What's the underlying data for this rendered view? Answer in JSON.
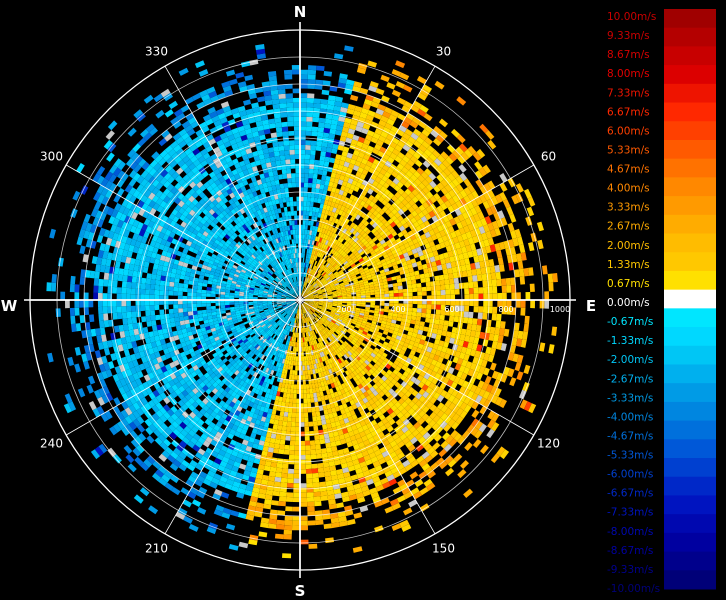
{
  "compass": {
    "n": "N",
    "e": "E",
    "s": "S",
    "w": "W"
  },
  "degree_labels": [
    {
      "deg": 30,
      "text": "30"
    },
    {
      "deg": 60,
      "text": "60"
    },
    {
      "deg": 120,
      "text": "120"
    },
    {
      "deg": 150,
      "text": "150"
    },
    {
      "deg": 210,
      "text": "210"
    },
    {
      "deg": 240,
      "text": "240"
    },
    {
      "deg": 300,
      "text": "300"
    },
    {
      "deg": 330,
      "text": "330"
    }
  ],
  "range_labels": [
    {
      "value": 200,
      "text": "200"
    },
    {
      "value": 400,
      "text": "400"
    },
    {
      "value": 600,
      "text": "600"
    },
    {
      "value": 800,
      "text": "800"
    },
    {
      "value": 1000,
      "text": "1000"
    }
  ],
  "colors": {
    "background": "#000000",
    "grid": "#ffffff",
    "positive_scale": [
      "#fffafa",
      "#ffe000",
      "#ffd400",
      "#ffc800",
      "#ffbc00",
      "#ffac00",
      "#ff9a00",
      "#ff8800",
      "#ff7200",
      "#ff5a00",
      "#ff4000",
      "#ff2800",
      "#ee1400",
      "#dc0000",
      "#c80000",
      "#b00000"
    ],
    "negative_scale": [
      "#00e6ff",
      "#00d8ff",
      "#00c6f5",
      "#00b0ee",
      "#009be6",
      "#0086e0",
      "#0070dc",
      "#0058d8",
      "#0040d0",
      "#0028c8",
      "#0014c0",
      "#0008b0",
      "#0000a0",
      "#00008c",
      "#000078",
      "#000064"
    ]
  },
  "legend": {
    "labels": [
      {
        "text": "10.00m/s",
        "color": "#c80000"
      },
      {
        "text": "9.33m/s",
        "color": "#c80000"
      },
      {
        "text": "8.67m/s",
        "color": "#d60000"
      },
      {
        "text": "8.00m/s",
        "color": "#e20000"
      },
      {
        "text": "7.33m/s",
        "color": "#ee1400"
      },
      {
        "text": "6.67m/s",
        "color": "#ff2800"
      },
      {
        "text": "6.00m/s",
        "color": "#ff4000"
      },
      {
        "text": "5.33m/s",
        "color": "#ff5a00"
      },
      {
        "text": "4.67m/s",
        "color": "#ff7200"
      },
      {
        "text": "4.00m/s",
        "color": "#ff8800"
      },
      {
        "text": "3.33m/s",
        "color": "#ff9a00"
      },
      {
        "text": "2.67m/s",
        "color": "#ffac00"
      },
      {
        "text": "2.00m/s",
        "color": "#ffbc00"
      },
      {
        "text": "1.33m/s",
        "color": "#ffc800"
      },
      {
        "text": "0.67m/s",
        "color": "#ffe000"
      },
      {
        "text": "0.00m/s",
        "color": "#ffffff"
      },
      {
        "text": "-0.67m/s",
        "color": "#00e6ff"
      },
      {
        "text": "-1.33m/s",
        "color": "#00d8ff"
      },
      {
        "text": "-2.00m/s",
        "color": "#00c6f5"
      },
      {
        "text": "-2.67m/s",
        "color": "#00b0ee"
      },
      {
        "text": "-3.33m/s",
        "color": "#009be6"
      },
      {
        "text": "-4.00m/s",
        "color": "#0086e0"
      },
      {
        "text": "-4.67m/s",
        "color": "#0070dc"
      },
      {
        "text": "-5.33m/s",
        "color": "#0058d8"
      },
      {
        "text": "-6.00m/s",
        "color": "#0040d0"
      },
      {
        "text": "-6.67m/s",
        "color": "#0028c8"
      },
      {
        "text": "-7.33m/s",
        "color": "#0014c0"
      },
      {
        "text": "-8.00m/s",
        "color": "#0008b0"
      },
      {
        "text": "-8.67m/s",
        "color": "#0000a0"
      },
      {
        "text": "-9.33m/s",
        "color": "#00008c"
      },
      {
        "text": "-10.00m/s",
        "color": "#000078"
      }
    ],
    "bar_colors": [
      "#a00000",
      "#b40000",
      "#c80000",
      "#dc0000",
      "#ee1400",
      "#ff2800",
      "#ff4000",
      "#ff5a00",
      "#ff7200",
      "#ff8800",
      "#ff9a00",
      "#ffac00",
      "#ffbc00",
      "#ffc800",
      "#ffe000",
      "#ffffff",
      "#00e6ff",
      "#00d8ff",
      "#00c6f5",
      "#00b0ee",
      "#009be6",
      "#0086e0",
      "#0070dc",
      "#0058d8",
      "#0040d0",
      "#0028c8",
      "#0014c0",
      "#0008b0",
      "#0000a0",
      "#00008c",
      "#000078"
    ]
  }
}
